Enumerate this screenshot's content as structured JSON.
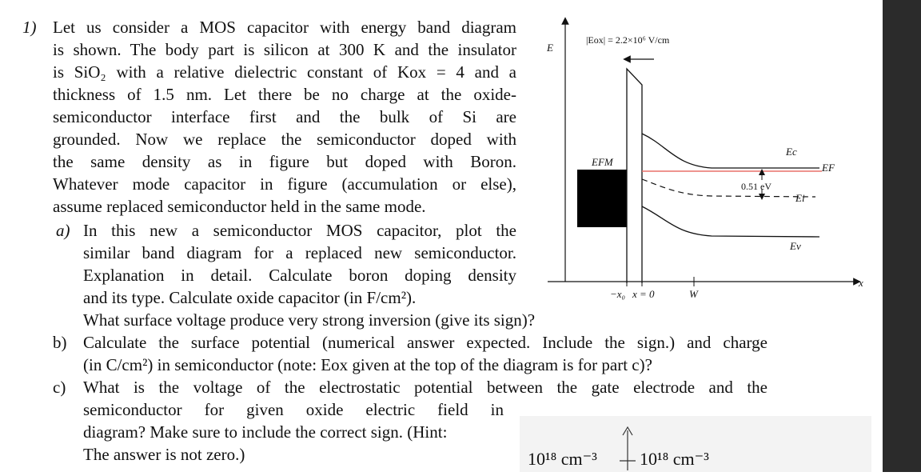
{
  "question": {
    "number": "1)",
    "intro_lines": [
      "Let us consider a MOS capacitor with energy band diagram",
      "is shown. The body part is silicon at 300 K and the insulator",
      "is SiO₂ with a relative dielectric constant of Kox = 4 and a",
      "thickness of 1.5 nm. Let there be no charge at the oxide-",
      "semiconductor interface first and the bulk of Si are",
      "grounded. Now we replace the semiconductor doped with",
      "the same density as in figure but doped with Boron.",
      "Whatever mode capacitor in figure (accumulation or else),",
      "assume replaced semiconductor held in the same mode."
    ],
    "part_a": {
      "letter": "a)",
      "lines": [
        "In this new a semiconductor MOS capacitor, plot the",
        "similar band diagram for a replaced new semiconductor.",
        "Explanation in detail.  Calculate boron doping density",
        "and its type.   Calculate oxide capacitor (in F/cm²).",
        "What surface voltage produce very strong inversion (give its sign)?"
      ]
    },
    "part_b": {
      "letter": "b)",
      "lines": [
        "Calculate the surface potential (numerical answer expected. Include the sign.) and charge",
        "(in C/cm²) in semiconductor (note: Eox given at the top of the diagram is for part c)?"
      ]
    },
    "part_c": {
      "letter": "c)",
      "lines": [
        "What is the voltage of the electrostatic potential between the gate electrode and the",
        "semiconductor  for  given  oxide  electric  field  in",
        "diagram? Make sure to include the correct sign. (Hint:",
        "The answer is not zero.)"
      ]
    }
  },
  "diagram": {
    "y_axis_label": "E",
    "x_axis_label": "x",
    "eox_label": "|Eox| = 2.2×10⁶ V/cm",
    "efm_label": "EFM",
    "ec_label": "Ec",
    "ef_label": "EF",
    "ei_label": "Ei",
    "ev_label": "Ev",
    "energy_gap_label": "0.51 eV",
    "x_tick_labels": [
      "−x₀",
      "x = 0",
      "W"
    ],
    "colors": {
      "fermi_level": "#e8706a",
      "metal": "#000000",
      "lines": "#222222"
    }
  },
  "densities": {
    "left": "10¹⁸ cm⁻³",
    "right": "10¹⁸ cm⁻³"
  }
}
